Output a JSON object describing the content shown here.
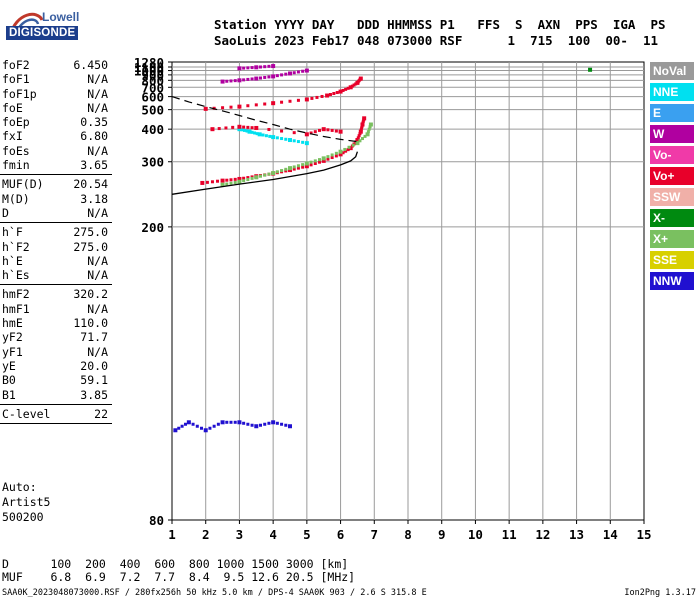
{
  "brand": {
    "lowell": "Lowell",
    "digisonde": "DIGISONDE"
  },
  "header": {
    "line1": "Station YYYY DAY   DDD HHMMSS P1   FFS  S  AXN  PPS  IGA  PS",
    "line2": "SaoLuis 2023 Feb17 048 073000 RSF      1  715  100  00-  11"
  },
  "params": [
    {
      "name": "foF2",
      "value": "6.450"
    },
    {
      "name": "foF1",
      "value": "N/A"
    },
    {
      "name": "foF1p",
      "value": "N/A"
    },
    {
      "name": "foE",
      "value": "N/A"
    },
    {
      "name": "foEp",
      "value": "0.35"
    },
    {
      "name": "fxI",
      "value": "6.80"
    },
    {
      "name": "foEs",
      "value": "N/A"
    },
    {
      "name": "fmin",
      "value": "3.65"
    },
    {
      "sep": true
    },
    {
      "name": "MUF(D)",
      "value": "20.54"
    },
    {
      "name": "M(D)",
      "value": "3.18"
    },
    {
      "name": "D",
      "value": "N/A"
    },
    {
      "sep": true
    },
    {
      "name": "h`F",
      "value": "275.0"
    },
    {
      "name": "h`F2",
      "value": "275.0"
    },
    {
      "name": "h`E",
      "value": "N/A"
    },
    {
      "name": "h`Es",
      "value": "N/A"
    },
    {
      "sep": true
    },
    {
      "name": "hmF2",
      "value": "320.2"
    },
    {
      "name": "hmF1",
      "value": "N/A"
    },
    {
      "name": "hmE",
      "value": "110.0"
    },
    {
      "name": "yF2",
      "value": "71.7"
    },
    {
      "name": "yF1",
      "value": "N/A"
    },
    {
      "name": "yE",
      "value": "20.0"
    },
    {
      "name": "B0",
      "value": "59.1"
    },
    {
      "name": "B1",
      "value": "3.85"
    },
    {
      "sep": true
    },
    {
      "name": "C-level",
      "value": "22"
    },
    {
      "sep": true
    }
  ],
  "auto": {
    "line1": "Auto:",
    "line2": "Artist5",
    "line3": "500200"
  },
  "legend": [
    {
      "label": "NoVal",
      "color": "#9a9a9a"
    },
    {
      "label": "NNE",
      "color": "#00e0f0"
    },
    {
      "label": "E",
      "color": "#3aa0f0"
    },
    {
      "label": "W",
      "color": "#b000a0"
    },
    {
      "label": "Vo-",
      "color": "#f03aa8"
    },
    {
      "label": "Vo+",
      "color": "#e8002a"
    },
    {
      "label": "SSW",
      "color": "#f0b0a8"
    },
    {
      "label": "X-",
      "color": "#008a10"
    },
    {
      "label": "X+",
      "color": "#7ac060"
    },
    {
      "label": "SSE",
      "color": "#d8d000"
    },
    {
      "label": "NNW",
      "color": "#2010d0"
    }
  ],
  "dmuf": {
    "d_line": "D      100  200  400  600  800 1000 1500 3000 [km]",
    "muf_line": "MUF    6.8  6.9  7.2  7.7  8.4  9.5 12.6 20.5 [MHz]"
  },
  "footer": {
    "left": "SAA0K_2023048073000.RSF / 280fx256h 50 kHz 5.0 km / DPS-4 SAA0K 903 / 2.6 S 315.8 E",
    "right": "Ion2Png 1.3.17"
  },
  "chart_data": {
    "type": "scatter",
    "x_ticks": [
      "1",
      "2",
      "3",
      "4",
      "5",
      "6",
      "7",
      "8",
      "9",
      "10",
      "11",
      "12",
      "13",
      "14",
      "15"
    ],
    "y_ticks": [
      "80",
      "200",
      "300",
      "400",
      "500",
      "600",
      "700",
      "800",
      "900",
      "1000",
      "1100",
      "1280"
    ],
    "xlim": [
      1,
      15
    ],
    "ylim": [
      80,
      1280
    ],
    "y_scale": "reciprocal",
    "grid": true,
    "traces": [
      {
        "name": "O-trace F2",
        "color": "#e8002a",
        "points": [
          [
            1.9,
            258
          ],
          [
            2.5,
            262
          ],
          [
            3.0,
            265
          ],
          [
            3.5,
            270
          ],
          [
            4.0,
            275
          ],
          [
            4.5,
            282
          ],
          [
            5.0,
            290
          ],
          [
            5.5,
            302
          ],
          [
            6.0,
            318
          ],
          [
            6.3,
            335
          ],
          [
            6.5,
            360
          ],
          [
            6.6,
            390
          ],
          [
            6.65,
            420
          ],
          [
            6.7,
            450
          ]
        ]
      },
      {
        "name": "X-trace F2",
        "color": "#7ac060",
        "points": [
          [
            2.5,
            255
          ],
          [
            3.0,
            260
          ],
          [
            3.5,
            268
          ],
          [
            4.0,
            276
          ],
          [
            4.5,
            286
          ],
          [
            5.0,
            296
          ],
          [
            5.5,
            308
          ],
          [
            6.0,
            325
          ],
          [
            6.5,
            350
          ],
          [
            6.8,
            380
          ],
          [
            6.9,
            420
          ]
        ]
      },
      {
        "name": "Multi-hop 2",
        "color": "#e8002a",
        "points": [
          [
            2.0,
            505
          ],
          [
            3.0,
            520
          ],
          [
            4.0,
            545
          ],
          [
            5.0,
            575
          ],
          [
            5.6,
            610
          ],
          [
            6.0,
            650
          ],
          [
            6.3,
            700
          ],
          [
            6.5,
            760
          ],
          [
            6.6,
            830
          ]
        ]
      },
      {
        "name": "Multi-hop 3",
        "color": "#b000a0",
        "points": [
          [
            2.5,
            780
          ],
          [
            3.0,
            800
          ],
          [
            3.5,
            830
          ],
          [
            4.0,
            870
          ],
          [
            4.5,
            930
          ],
          [
            5.0,
            1000
          ]
        ]
      },
      {
        "name": "Multi-hop 4",
        "color": "#b000a0",
        "points": [
          [
            3.0,
            1060
          ],
          [
            3.5,
            1090
          ],
          [
            4.0,
            1130
          ]
        ]
      },
      {
        "name": "Oblique NNE",
        "color": "#00e0f0",
        "points": [
          [
            3.0,
            400
          ],
          [
            3.3,
            390
          ],
          [
            3.6,
            380
          ],
          [
            4.0,
            370
          ],
          [
            4.5,
            360
          ],
          [
            5.0,
            350
          ]
        ]
      },
      {
        "name": "Spread echoes",
        "color": "#e8002a",
        "points": [
          [
            2.2,
            400
          ],
          [
            3.0,
            410
          ],
          [
            3.5,
            405
          ],
          [
            5.0,
            380
          ],
          [
            5.5,
            400
          ],
          [
            6.0,
            390
          ]
        ]
      },
      {
        "name": "Low layer",
        "color": "#2010d0",
        "points": [
          [
            1.1,
            98
          ],
          [
            1.5,
            100
          ],
          [
            2.0,
            98
          ],
          [
            2.5,
            100
          ],
          [
            3.0,
            100
          ],
          [
            3.5,
            99
          ],
          [
            4.0,
            100
          ],
          [
            4.5,
            99
          ]
        ]
      },
      {
        "name": "Isolated",
        "color": "#008a10",
        "points": [
          [
            13.4,
            1020
          ]
        ]
      }
    ],
    "model_profile": {
      "color": "#000",
      "points": [
        [
          1.0,
          240
        ],
        [
          2.0,
          248
        ],
        [
          3.0,
          256
        ],
        [
          4.0,
          264
        ],
        [
          5.0,
          275
        ],
        [
          5.5,
          282
        ],
        [
          6.0,
          293
        ],
        [
          6.3,
          302
        ],
        [
          6.45,
          312
        ],
        [
          6.5,
          325
        ]
      ]
    },
    "model_dashed": {
      "color": "#000",
      "points": [
        [
          1.0,
          600
        ],
        [
          1.5,
          555
        ],
        [
          2.0,
          520
        ],
        [
          2.5,
          492
        ],
        [
          3.0,
          465
        ],
        [
          3.5,
          440
        ],
        [
          4.0,
          420
        ],
        [
          4.5,
          400
        ],
        [
          5.0,
          385
        ],
        [
          5.5,
          372
        ],
        [
          6.0,
          362
        ],
        [
          6.5,
          355
        ]
      ]
    }
  }
}
